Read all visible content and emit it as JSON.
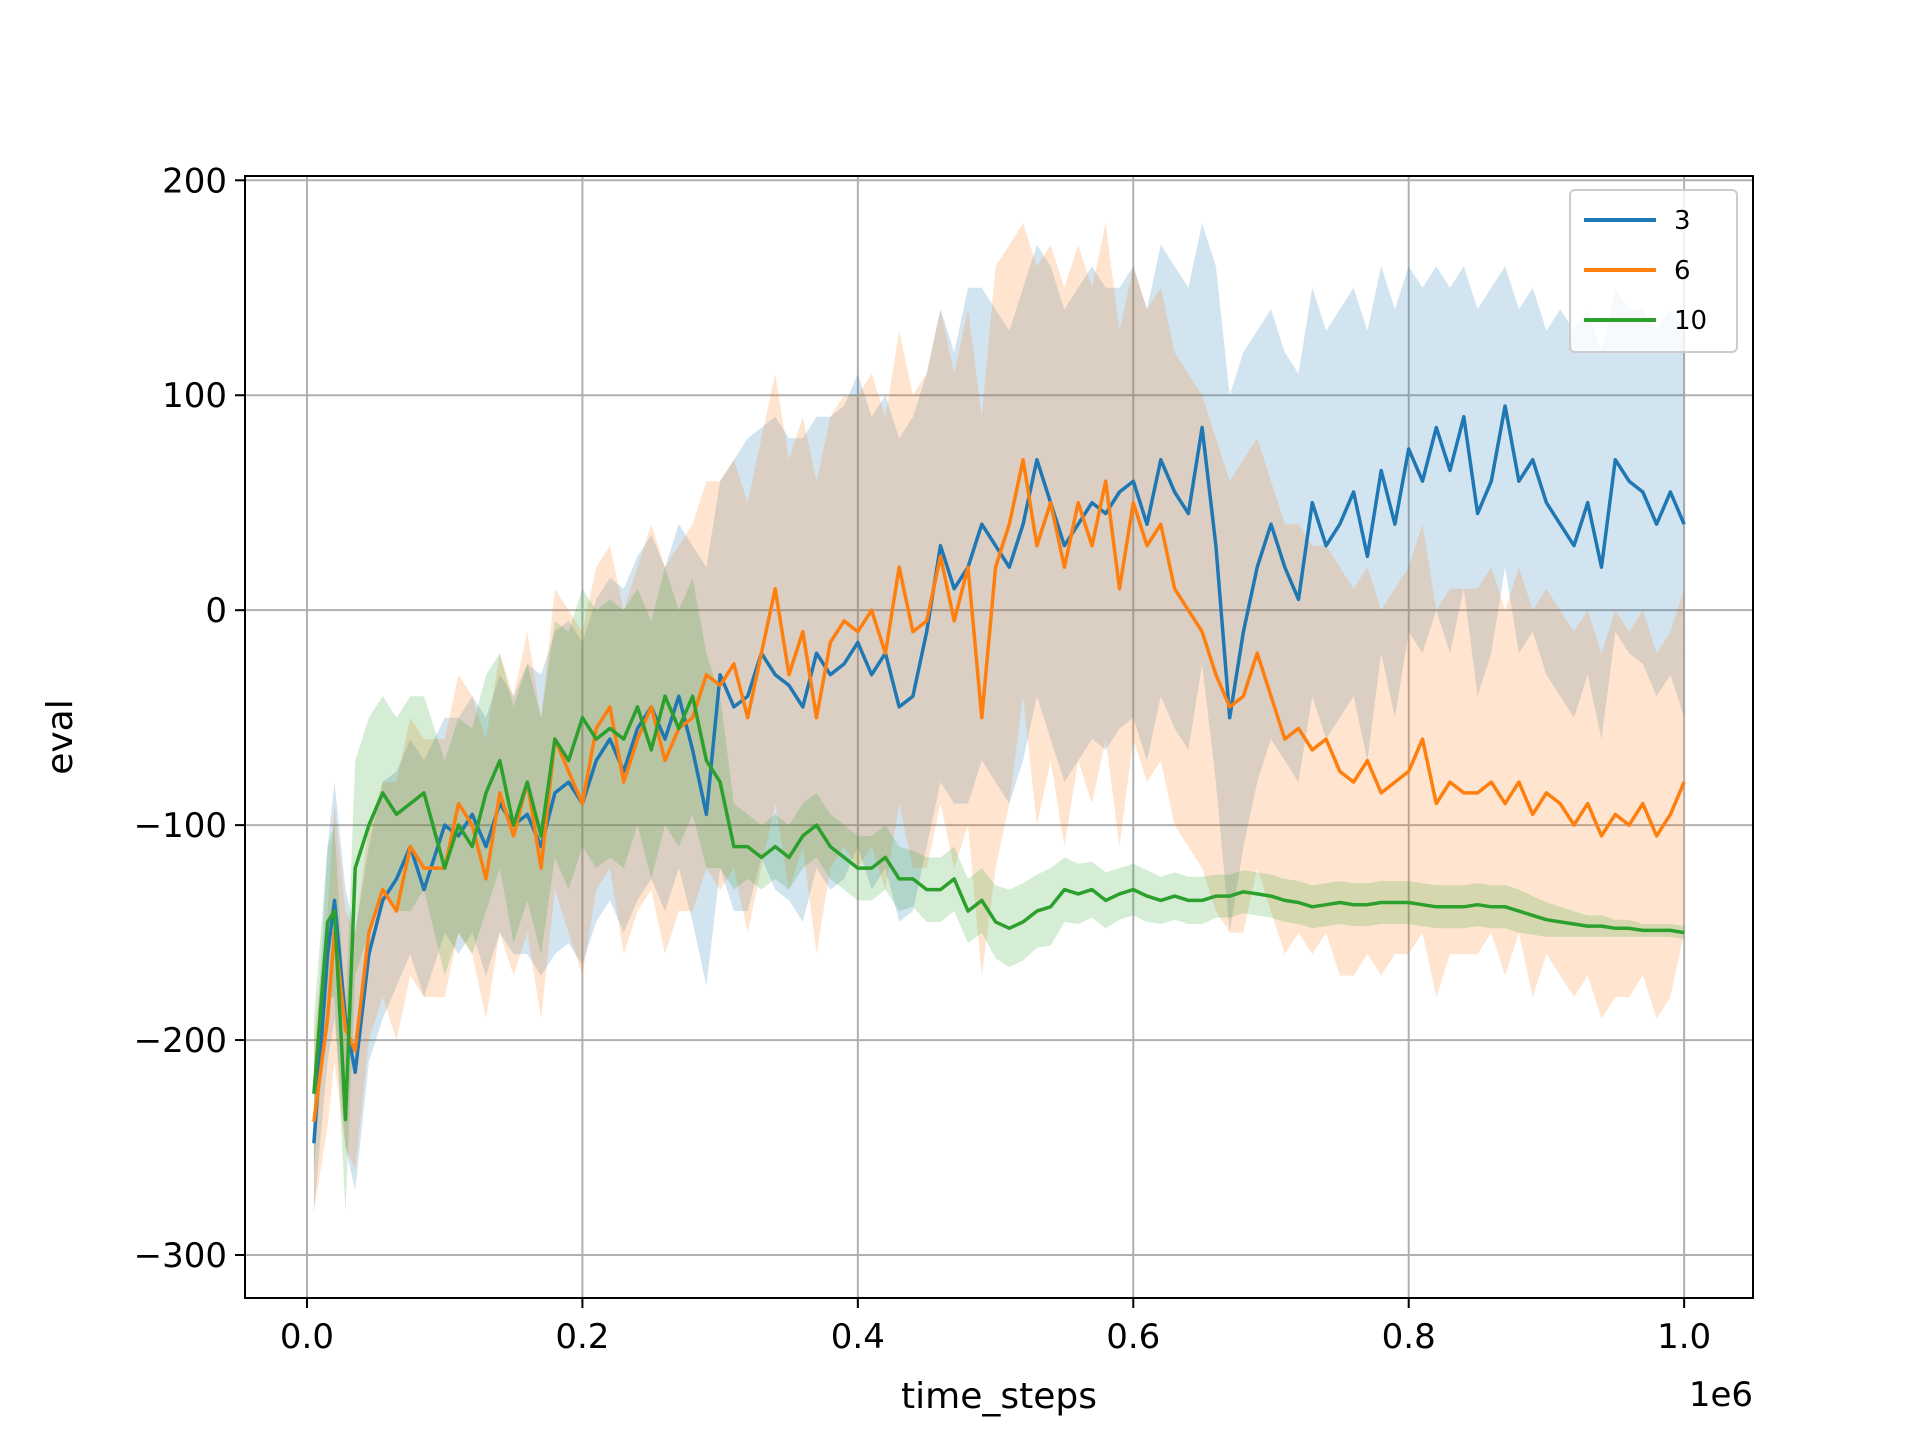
{
  "chart_data": {
    "type": "line",
    "title": "",
    "xlabel": "time_steps",
    "ylabel": "eval",
    "x_offset_label": "1e6",
    "xlim": [
      -0.045,
      1.05
    ],
    "ylim": [
      -320,
      202
    ],
    "xticks": [
      0.0,
      0.2,
      0.4,
      0.6,
      0.8,
      1.0
    ],
    "xtick_labels": [
      "0.0",
      "0.2",
      "0.4",
      "0.6",
      "0.8",
      "1.0"
    ],
    "yticks": [
      -300,
      -200,
      -100,
      0,
      100,
      200
    ],
    "ytick_labels": [
      "−300",
      "−200",
      "−100",
      "0",
      "100",
      "200"
    ],
    "grid": true,
    "legend_position": "top-right",
    "series": [
      {
        "name": "3",
        "color": "#1f77b4",
        "x": [
          0.005,
          0.015,
          0.02,
          0.028,
          0.035,
          0.045,
          0.055,
          0.065,
          0.075,
          0.085,
          0.1,
          0.11,
          0.12,
          0.13,
          0.14,
          0.15,
          0.16,
          0.17,
          0.18,
          0.19,
          0.2,
          0.21,
          0.22,
          0.23,
          0.24,
          0.25,
          0.26,
          0.27,
          0.28,
          0.29,
          0.3,
          0.31,
          0.32,
          0.33,
          0.34,
          0.35,
          0.36,
          0.37,
          0.38,
          0.39,
          0.4,
          0.41,
          0.42,
          0.43,
          0.44,
          0.45,
          0.46,
          0.47,
          0.48,
          0.49,
          0.5,
          0.51,
          0.52,
          0.53,
          0.54,
          0.55,
          0.56,
          0.57,
          0.58,
          0.59,
          0.6,
          0.61,
          0.62,
          0.63,
          0.64,
          0.65,
          0.66,
          0.67,
          0.68,
          0.69,
          0.7,
          0.71,
          0.72,
          0.73,
          0.74,
          0.75,
          0.76,
          0.77,
          0.78,
          0.79,
          0.8,
          0.81,
          0.82,
          0.83,
          0.84,
          0.85,
          0.86,
          0.87,
          0.88,
          0.89,
          0.9,
          0.91,
          0.92,
          0.93,
          0.94,
          0.95,
          0.96,
          0.97,
          0.98,
          0.99,
          1.0
        ],
        "y": [
          -248,
          -160,
          -135,
          -190,
          -215,
          -160,
          -135,
          -125,
          -110,
          -130,
          -100,
          -105,
          -95,
          -110,
          -90,
          -100,
          -95,
          -110,
          -85,
          -80,
          -90,
          -70,
          -60,
          -75,
          -55,
          -45,
          -60,
          -40,
          -65,
          -95,
          -30,
          -45,
          -40,
          -20,
          -30,
          -35,
          -45,
          -20,
          -30,
          -25,
          -15,
          -30,
          -20,
          -45,
          -40,
          -10,
          30,
          10,
          20,
          40,
          30,
          20,
          40,
          70,
          50,
          30,
          40,
          50,
          45,
          55,
          60,
          40,
          70,
          55,
          45,
          85,
          30,
          -50,
          -10,
          20,
          40,
          20,
          5,
          50,
          30,
          40,
          55,
          25,
          65,
          40,
          75,
          60,
          85,
          65,
          90,
          45,
          60,
          95,
          60,
          70,
          50,
          40,
          30,
          50,
          20,
          70,
          60,
          55,
          40,
          55,
          40
        ],
        "upper": [
          -220,
          -110,
          -80,
          -130,
          -150,
          -110,
          -80,
          -75,
          -60,
          -70,
          -50,
          -50,
          -40,
          -50,
          -30,
          -40,
          -25,
          -30,
          -10,
          -5,
          -15,
          5,
          15,
          10,
          25,
          35,
          20,
          40,
          30,
          20,
          60,
          70,
          80,
          85,
          90,
          80,
          80,
          90,
          90,
          95,
          110,
          90,
          100,
          80,
          90,
          110,
          140,
          120,
          150,
          150,
          140,
          130,
          150,
          170,
          160,
          140,
          150,
          160,
          150,
          150,
          160,
          140,
          170,
          160,
          150,
          180,
          160,
          100,
          120,
          130,
          140,
          120,
          110,
          150,
          130,
          140,
          150,
          130,
          160,
          140,
          160,
          150,
          160,
          150,
          160,
          140,
          150,
          160,
          140,
          150,
          130,
          140,
          130,
          140,
          120,
          150,
          140,
          140,
          130,
          140,
          130
        ],
        "lower": [
          -280,
          -210,
          -190,
          -250,
          -270,
          -210,
          -190,
          -175,
          -160,
          -180,
          -150,
          -160,
          -150,
          -170,
          -150,
          -160,
          -160,
          -170,
          -160,
          -155,
          -165,
          -145,
          -135,
          -150,
          -135,
          -125,
          -140,
          -120,
          -145,
          -175,
          -120,
          -140,
          -140,
          -115,
          -130,
          -135,
          -145,
          -120,
          -130,
          -125,
          -110,
          -130,
          -120,
          -145,
          -140,
          -110,
          -80,
          -90,
          -90,
          -70,
          -80,
          -90,
          -70,
          -40,
          -60,
          -80,
          -70,
          -60,
          -65,
          -55,
          -50,
          -70,
          -40,
          -55,
          -65,
          -25,
          -80,
          -150,
          -110,
          -80,
          -60,
          -70,
          -80,
          -40,
          -60,
          -50,
          -40,
          -70,
          -20,
          -50,
          -10,
          -20,
          0,
          -20,
          10,
          -40,
          -20,
          20,
          -20,
          -10,
          -30,
          -40,
          -50,
          -30,
          -60,
          -10,
          -20,
          -25,
          -40,
          -30,
          -50
        ]
      },
      {
        "name": "6",
        "color": "#ff7f0e",
        "x": [
          0.005,
          0.015,
          0.02,
          0.028,
          0.035,
          0.045,
          0.055,
          0.065,
          0.075,
          0.085,
          0.1,
          0.11,
          0.12,
          0.13,
          0.14,
          0.15,
          0.16,
          0.17,
          0.18,
          0.19,
          0.2,
          0.21,
          0.22,
          0.23,
          0.24,
          0.25,
          0.26,
          0.27,
          0.28,
          0.29,
          0.3,
          0.31,
          0.32,
          0.33,
          0.34,
          0.35,
          0.36,
          0.37,
          0.38,
          0.39,
          0.4,
          0.41,
          0.42,
          0.43,
          0.44,
          0.45,
          0.46,
          0.47,
          0.48,
          0.49,
          0.5,
          0.51,
          0.52,
          0.53,
          0.54,
          0.55,
          0.56,
          0.57,
          0.58,
          0.59,
          0.6,
          0.61,
          0.62,
          0.63,
          0.64,
          0.65,
          0.66,
          0.67,
          0.68,
          0.69,
          0.7,
          0.71,
          0.72,
          0.73,
          0.74,
          0.75,
          0.76,
          0.77,
          0.78,
          0.79,
          0.8,
          0.81,
          0.82,
          0.83,
          0.84,
          0.85,
          0.86,
          0.87,
          0.88,
          0.89,
          0.9,
          0.91,
          0.92,
          0.93,
          0.94,
          0.95,
          0.96,
          0.97,
          0.98,
          0.99,
          1.0
        ],
        "y": [
          -238,
          -190,
          -150,
          -195,
          -205,
          -150,
          -130,
          -140,
          -110,
          -120,
          -120,
          -90,
          -100,
          -125,
          -85,
          -105,
          -80,
          -120,
          -60,
          -75,
          -90,
          -55,
          -45,
          -80,
          -60,
          -45,
          -70,
          -55,
          -50,
          -30,
          -35,
          -25,
          -50,
          -20,
          10,
          -30,
          -10,
          -50,
          -15,
          -5,
          -10,
          0,
          -20,
          20,
          -10,
          -5,
          25,
          -5,
          20,
          -50,
          20,
          40,
          70,
          30,
          50,
          20,
          50,
          30,
          60,
          10,
          50,
          30,
          40,
          10,
          0,
          -10,
          -30,
          -45,
          -40,
          -20,
          -40,
          -60,
          -55,
          -65,
          -60,
          -75,
          -80,
          -70,
          -85,
          -80,
          -75,
          -60,
          -90,
          -80,
          -85,
          -85,
          -80,
          -90,
          -80,
          -95,
          -85,
          -90,
          -100,
          -90,
          -105,
          -95,
          -100,
          -90,
          -105,
          -95,
          -80
        ],
        "upper": [
          -200,
          -140,
          -90,
          -140,
          -150,
          -100,
          -80,
          -80,
          -50,
          -60,
          -60,
          -30,
          -40,
          -60,
          -20,
          -40,
          -10,
          -50,
          10,
          0,
          -10,
          20,
          30,
          0,
          20,
          40,
          20,
          30,
          40,
          60,
          60,
          70,
          50,
          80,
          110,
          70,
          90,
          60,
          90,
          100,
          100,
          110,
          90,
          130,
          100,
          110,
          140,
          110,
          140,
          90,
          160,
          170,
          180,
          160,
          170,
          150,
          170,
          150,
          180,
          130,
          160,
          140,
          150,
          120,
          110,
          100,
          80,
          60,
          70,
          80,
          60,
          40,
          40,
          30,
          30,
          20,
          10,
          20,
          0,
          10,
          20,
          40,
          0,
          10,
          10,
          10,
          20,
          0,
          20,
          0,
          10,
          0,
          -10,
          0,
          -20,
          0,
          -10,
          0,
          -20,
          -10,
          10
        ],
        "lower": [
          -280,
          -240,
          -210,
          -250,
          -260,
          -200,
          -180,
          -200,
          -170,
          -180,
          -180,
          -150,
          -160,
          -190,
          -150,
          -170,
          -150,
          -190,
          -130,
          -150,
          -170,
          -130,
          -120,
          -160,
          -140,
          -130,
          -160,
          -140,
          -140,
          -120,
          -130,
          -120,
          -150,
          -120,
          -90,
          -130,
          -110,
          -160,
          -120,
          -110,
          -120,
          -110,
          -130,
          -90,
          -120,
          -120,
          -90,
          -120,
          -100,
          -170,
          -120,
          -90,
          -40,
          -100,
          -70,
          -110,
          -70,
          -90,
          -60,
          -110,
          -60,
          -80,
          -70,
          -100,
          -110,
          -120,
          -140,
          -150,
          -150,
          -120,
          -140,
          -160,
          -150,
          -160,
          -150,
          -170,
          -170,
          -160,
          -170,
          -160,
          -160,
          -150,
          -180,
          -160,
          -160,
          -160,
          -150,
          -170,
          -150,
          -180,
          -160,
          -170,
          -180,
          -170,
          -190,
          -180,
          -180,
          -170,
          -190,
          -180,
          -150
        ]
      },
      {
        "name": "10",
        "color": "#2ca02c",
        "x": [
          0.005,
          0.015,
          0.02,
          0.028,
          0.035,
          0.045,
          0.055,
          0.065,
          0.075,
          0.085,
          0.1,
          0.11,
          0.12,
          0.13,
          0.14,
          0.15,
          0.16,
          0.17,
          0.18,
          0.19,
          0.2,
          0.21,
          0.22,
          0.23,
          0.24,
          0.25,
          0.26,
          0.27,
          0.28,
          0.29,
          0.3,
          0.31,
          0.32,
          0.33,
          0.34,
          0.35,
          0.36,
          0.37,
          0.38,
          0.39,
          0.4,
          0.41,
          0.42,
          0.43,
          0.44,
          0.45,
          0.46,
          0.47,
          0.48,
          0.49,
          0.5,
          0.51,
          0.52,
          0.53,
          0.54,
          0.55,
          0.56,
          0.57,
          0.58,
          0.59,
          0.6,
          0.61,
          0.62,
          0.63,
          0.64,
          0.65,
          0.66,
          0.67,
          0.68,
          0.69,
          0.7,
          0.71,
          0.72,
          0.73,
          0.74,
          0.75,
          0.76,
          0.77,
          0.78,
          0.79,
          0.8,
          0.81,
          0.82,
          0.83,
          0.84,
          0.85,
          0.86,
          0.87,
          0.88,
          0.89,
          0.9,
          0.91,
          0.92,
          0.93,
          0.94,
          0.95,
          0.96,
          0.97,
          0.98,
          0.99,
          1.0
        ],
        "y": [
          -225,
          -145,
          -140,
          -237,
          -120,
          -100,
          -85,
          -95,
          -90,
          -85,
          -120,
          -100,
          -110,
          -85,
          -70,
          -100,
          -80,
          -105,
          -60,
          -70,
          -50,
          -60,
          -55,
          -60,
          -45,
          -65,
          -40,
          -55,
          -40,
          -70,
          -80,
          -110,
          -110,
          -115,
          -110,
          -115,
          -105,
          -100,
          -110,
          -115,
          -120,
          -120,
          -115,
          -125,
          -125,
          -130,
          -130,
          -125,
          -140,
          -135,
          -145,
          -148,
          -145,
          -140,
          -138,
          -130,
          -132,
          -130,
          -135,
          -132,
          -130,
          -133,
          -135,
          -133,
          -135,
          -135,
          -133,
          -133,
          -131,
          -132,
          -133,
          -135,
          -136,
          -138,
          -137,
          -136,
          -137,
          -137,
          -136,
          -136,
          -136,
          -137,
          -138,
          -138,
          -138,
          -137,
          -138,
          -138,
          -140,
          -142,
          -144,
          -145,
          -146,
          -147,
          -147,
          -148,
          -148,
          -149,
          -149,
          -149,
          -150
        ],
        "upper": [
          -190,
          -110,
          -100,
          -190,
          -70,
          -50,
          -40,
          -50,
          -40,
          -40,
          -70,
          -50,
          -55,
          -30,
          -20,
          -45,
          -25,
          -50,
          -5,
          -10,
          10,
          0,
          5,
          0,
          10,
          -5,
          20,
          0,
          15,
          -20,
          -40,
          -90,
          -95,
          -100,
          -95,
          -100,
          -90,
          -85,
          -95,
          -100,
          -105,
          -105,
          -100,
          -110,
          -112,
          -115,
          -115,
          -110,
          -125,
          -120,
          -128,
          -130,
          -127,
          -123,
          -120,
          -115,
          -118,
          -117,
          -122,
          -120,
          -118,
          -121,
          -124,
          -122,
          -124,
          -124,
          -123,
          -123,
          -121,
          -122,
          -123,
          -125,
          -126,
          -128,
          -127,
          -126,
          -127,
          -127,
          -126,
          -126,
          -126,
          -127,
          -128,
          -128,
          -128,
          -127,
          -128,
          -128,
          -130,
          -133,
          -136,
          -138,
          -140,
          -142,
          -142,
          -144,
          -144,
          -146,
          -146,
          -146,
          -147
        ],
        "lower": [
          -260,
          -180,
          -180,
          -280,
          -170,
          -150,
          -130,
          -140,
          -140,
          -130,
          -170,
          -150,
          -160,
          -140,
          -120,
          -155,
          -135,
          -160,
          -115,
          -130,
          -110,
          -120,
          -115,
          -120,
          -100,
          -125,
          -100,
          -110,
          -95,
          -120,
          -120,
          -130,
          -125,
          -130,
          -125,
          -130,
          -120,
          -115,
          -125,
          -130,
          -135,
          -135,
          -130,
          -140,
          -138,
          -145,
          -145,
          -140,
          -155,
          -150,
          -162,
          -166,
          -163,
          -157,
          -156,
          -145,
          -146,
          -143,
          -148,
          -144,
          -142,
          -145,
          -146,
          -144,
          -146,
          -146,
          -143,
          -143,
          -141,
          -142,
          -143,
          -145,
          -146,
          -148,
          -147,
          -146,
          -147,
          -147,
          -146,
          -146,
          -146,
          -147,
          -148,
          -148,
          -148,
          -147,
          -148,
          -148,
          -150,
          -151,
          -152,
          -152,
          -152,
          -152,
          -152,
          -152,
          -152,
          -152,
          -152,
          -152,
          -153
        ]
      }
    ]
  }
}
